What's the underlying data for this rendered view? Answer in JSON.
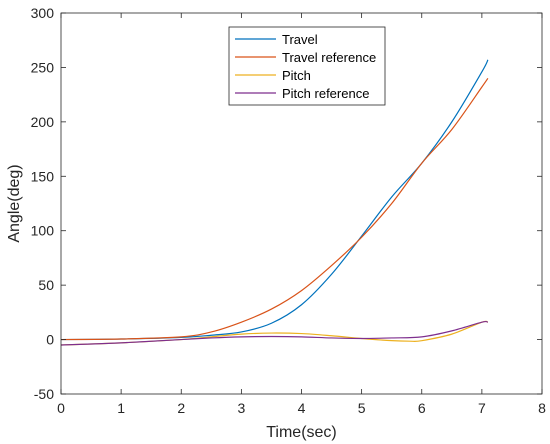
{
  "chart_data": {
    "type": "line",
    "title": "",
    "xlabel": "Time(sec)",
    "ylabel": "Angle(deg)",
    "xlim": [
      0,
      8
    ],
    "ylim": [
      -50,
      300
    ],
    "xticks": [
      0,
      1,
      2,
      3,
      4,
      5,
      6,
      7,
      8
    ],
    "yticks": [
      -50,
      0,
      50,
      100,
      150,
      200,
      250,
      300
    ],
    "grid": false,
    "legend_position": "top-center",
    "series": [
      {
        "name": "Travel",
        "color": "#0072BD",
        "x": [
          0,
          1,
          2,
          2.5,
          3,
          3.5,
          4,
          4.5,
          5,
          5.5,
          6,
          6.5,
          7,
          7.1
        ],
        "y": [
          0,
          0.5,
          2,
          4,
          7,
          15,
          32,
          60,
          95,
          131,
          162,
          200,
          246,
          257
        ]
      },
      {
        "name": "Travel reference",
        "color": "#D95319",
        "x": [
          0,
          1,
          2,
          2.5,
          3,
          3.5,
          4,
          4.5,
          5,
          5.5,
          6,
          6.5,
          7,
          7.1
        ],
        "y": [
          0,
          0.5,
          2.5,
          7,
          16,
          28,
          45,
          68,
          94,
          125,
          162,
          193,
          232,
          240
        ]
      },
      {
        "name": "Pitch",
        "color": "#EDB120",
        "x": [
          0,
          1,
          2,
          2.5,
          3,
          3.5,
          4,
          4.5,
          5,
          5.5,
          5.8,
          6,
          6.5,
          7,
          7.1
        ],
        "y": [
          -5,
          -3,
          0,
          2.5,
          5,
          6,
          5.5,
          3.5,
          1,
          -1,
          -1.5,
          -1,
          5,
          16,
          16
        ]
      },
      {
        "name": "Pitch reference",
        "color": "#7E2F8E",
        "x": [
          0,
          1,
          2,
          2.5,
          3,
          3.5,
          4,
          4.5,
          5,
          5.5,
          6,
          6.5,
          7,
          7.1
        ],
        "y": [
          -5,
          -3,
          0,
          1.5,
          2.5,
          2.8,
          2.5,
          1.5,
          1,
          1.5,
          2.5,
          8,
          16,
          16
        ]
      }
    ]
  }
}
